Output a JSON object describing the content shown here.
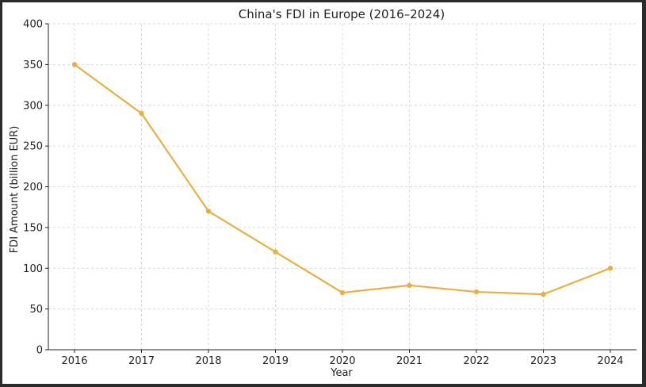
{
  "chart_data": {
    "type": "line",
    "title": "China's FDI in Europe (2016–2024)",
    "xlabel": "Year",
    "ylabel": "FDI Amount (billion EUR)",
    "x": [
      "2016",
      "2017",
      "2018",
      "2019",
      "2020",
      "2021",
      "2022",
      "2023",
      "2024"
    ],
    "series": [
      {
        "values": [
          350,
          290,
          170,
          120,
          70,
          79,
          71,
          68,
          100
        ],
        "color": "#e8b040"
      }
    ],
    "ylim": [
      0,
      400
    ],
    "yticks": [
      0,
      50,
      100,
      150,
      200,
      250,
      300,
      350,
      400
    ],
    "grid": true,
    "legend": "none"
  }
}
